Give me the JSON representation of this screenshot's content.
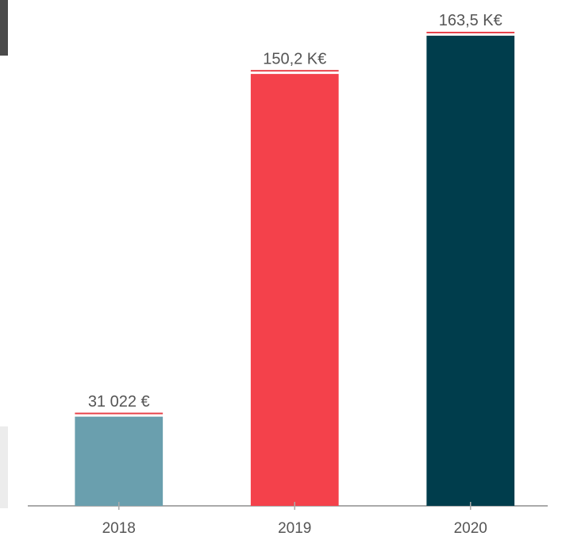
{
  "chart_data": {
    "type": "bar",
    "categories": [
      "2018",
      "2019",
      "2020"
    ],
    "values": [
      31022,
      150200,
      163500
    ],
    "value_labels": [
      "31 022 €",
      "150,2 K€",
      "163,5 K€"
    ],
    "colors": [
      "#6a9fae",
      "#f4414b",
      "#003d4c"
    ],
    "ylim": [
      0,
      180000
    ]
  }
}
